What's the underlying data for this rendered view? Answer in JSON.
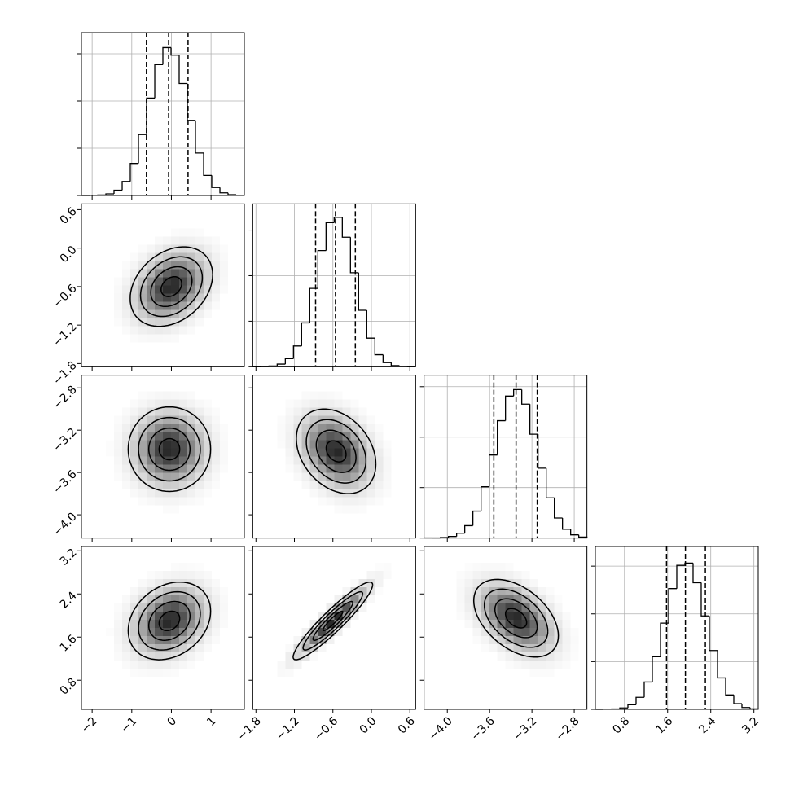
{
  "chart_data": {
    "type": "corner",
    "color": "#000000",
    "grid": true,
    "hist_yticks": [
      0,
      500,
      1000,
      1500
    ],
    "contour_levels": [
      0.5,
      1.0,
      1.5,
      2.0
    ],
    "parameters": [
      {
        "lim": [
          -2.27,
          1.84
        ],
        "ticks": [
          {
            "value": -2,
            "label": "−2"
          },
          {
            "value": -1,
            "label": "−1"
          },
          0,
          1
        ],
        "quantiles": [
          -0.63,
          -0.07,
          0.42
        ],
        "hist_ylim": [
          0,
          1724
        ],
        "bins": [
          -2.27,
          -2.064,
          -1.859,
          -1.653,
          -1.448,
          -1.242,
          -1.037,
          -0.831,
          -0.626,
          -0.42,
          -0.215,
          -0.009,
          0.196,
          0.402,
          0.607,
          0.813,
          1.018,
          1.224,
          1.429,
          1.635,
          1.84
        ],
        "counts": [
          0,
          1,
          5,
          17,
          56,
          149,
          339,
          645,
          1031,
          1385,
          1565,
          1485,
          1185,
          795,
          449,
          212,
          84,
          28,
          8,
          2
        ]
      },
      {
        "lim": [
          -1.85,
          0.69
        ],
        "ticks": [
          {
            "value": -1.8,
            "label": "−1.8"
          },
          {
            "value": -1.2,
            "label": "−1.2"
          },
          {
            "value": -0.6,
            "label": "−0.6"
          },
          {
            "value": 0,
            "label": "0.0"
          },
          0.6
        ],
        "quantiles": [
          -0.87,
          -0.56,
          -0.25
        ],
        "hist_ylim": [
          0,
          1788
        ],
        "bins": [
          -1.85,
          -1.723,
          -1.596,
          -1.469,
          -1.342,
          -1.215,
          -1.088,
          -0.961,
          -0.834,
          -0.707,
          -0.58,
          -0.453,
          -0.326,
          -0.199,
          -0.072,
          0.055,
          0.182,
          0.309,
          0.436,
          0.563,
          0.69
        ],
        "counts": [
          0,
          2,
          8,
          29,
          89,
          228,
          482,
          860,
          1276,
          1582,
          1640,
          1422,
          1032,
          620,
          314,
          132,
          46,
          13,
          4,
          1
        ]
      },
      {
        "lim": [
          -4.22,
          -2.68
        ],
        "ticks": [
          {
            "value": -4.0,
            "label": "−4.0"
          },
          {
            "value": -3.6,
            "label": "−3.6"
          },
          {
            "value": -3.2,
            "label": "−3.2"
          },
          {
            "value": -2.8,
            "label": "−2.8"
          }
        ],
        "quantiles": [
          -3.56,
          -3.35,
          -3.15
        ],
        "hist_ylim": [
          0,
          1614
        ],
        "bins": [
          -4.22,
          -4.143,
          -4.066,
          -3.989,
          -3.912,
          -3.835,
          -3.758,
          -3.681,
          -3.604,
          -3.527,
          -3.45,
          -3.373,
          -3.296,
          -3.219,
          -3.142,
          -3.065,
          -2.988,
          -2.911,
          -2.834,
          -2.757,
          -2.68
        ],
        "counts": [
          1,
          1,
          5,
          16,
          48,
          123,
          267,
          508,
          823,
          1163,
          1407,
          1471,
          1327,
          1029,
          692,
          399,
          199,
          87,
          32,
          10
        ]
      },
      {
        "lim": [
          0.26,
          3.28
        ],
        "ticks": [
          0.8,
          1.6,
          2.4,
          3.2
        ],
        "quantiles": [
          1.58,
          1.93,
          2.3
        ],
        "hist_ylim": [
          0,
          1706
        ],
        "bins": [
          0.26,
          0.411,
          0.562,
          0.713,
          0.864,
          1.015,
          1.166,
          1.317,
          1.468,
          1.619,
          1.77,
          1.921,
          2.072,
          2.223,
          2.374,
          2.525,
          2.676,
          2.827,
          2.978,
          3.129,
          3.28
        ],
        "counts": [
          0,
          1,
          4,
          15,
          48,
          126,
          286,
          551,
          903,
          1265,
          1508,
          1532,
          1327,
          979,
          616,
          329,
          151,
          59,
          19,
          5
        ]
      }
    ],
    "pairs": [
      {
        "x": 0,
        "y": 1,
        "center": [
          0.0,
          -0.6
        ],
        "sigma_x": 0.52,
        "sigma_y": 0.31,
        "rho": 0.3
      },
      {
        "x": 0,
        "y": 2,
        "center": [
          -0.05,
          -3.38
        ],
        "sigma_x": 0.52,
        "sigma_y": 0.2,
        "rho": 0.0
      },
      {
        "x": 1,
        "y": 2,
        "center": [
          -0.55,
          -3.4
        ],
        "sigma_x": 0.31,
        "sigma_y": 0.2,
        "rho": -0.3
      },
      {
        "x": 0,
        "y": 3,
        "center": [
          -0.05,
          1.9
        ],
        "sigma_x": 0.52,
        "sigma_y": 0.36,
        "rho": 0.25
      },
      {
        "x": 1,
        "y": 3,
        "center": [
          -0.6,
          1.9
        ],
        "sigma_x": 0.31,
        "sigma_y": 0.36,
        "rho": 0.93
      },
      {
        "x": 2,
        "y": 3,
        "center": [
          -3.35,
          1.95
        ],
        "sigma_x": 0.2,
        "sigma_y": 0.36,
        "rho": -0.45
      }
    ]
  }
}
